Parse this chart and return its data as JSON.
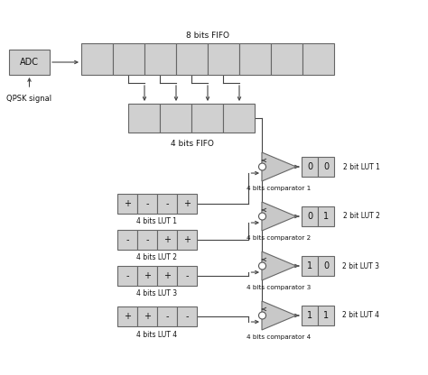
{
  "bg_color": "#ffffff",
  "box_face": "#d0d0d0",
  "box_edge": "#666666",
  "text_color": "#111111",
  "fig_width": 4.74,
  "fig_height": 4.16,
  "dpi": 100,
  "lut4_labels": [
    [
      "+",
      "-",
      "-",
      "+"
    ],
    [
      "-",
      "-",
      "+",
      "+"
    ],
    [
      "-",
      "+",
      "+",
      "-"
    ],
    [
      "+",
      "+",
      "-",
      "-"
    ]
  ],
  "lut4_names": [
    "4 bits LUT 1",
    "4 bits LUT 2",
    "4 bits LUT 3",
    "4 bits LUT 4"
  ],
  "lut2_labels": [
    [
      "0",
      "0"
    ],
    [
      "0",
      "1"
    ],
    [
      "1",
      "0"
    ],
    [
      "1",
      "1"
    ]
  ],
  "lut2_names": [
    "2 bit LUT 1",
    "2 bit LUT 2",
    "2 bit LUT 3",
    "2 bit LUT 4"
  ],
  "comp_labels": [
    "4 bits comparator 1",
    "4 bits comparator 2",
    "4 bits comparator 3",
    "4 bits comparator 4"
  ]
}
